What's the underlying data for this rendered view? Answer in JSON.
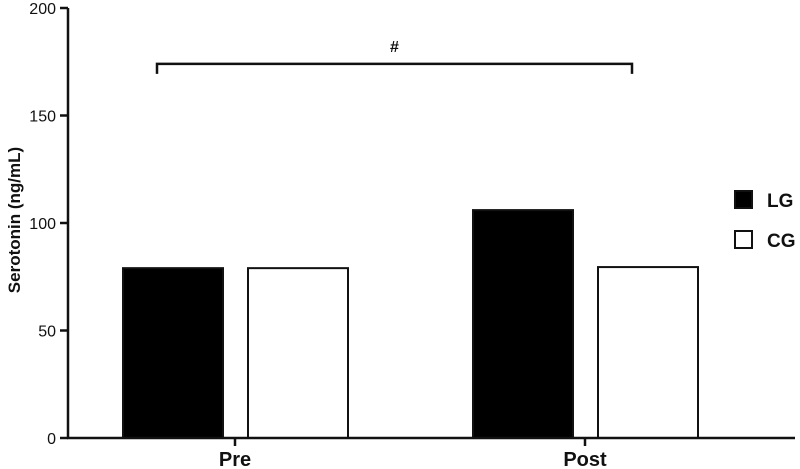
{
  "chart_data": {
    "type": "bar",
    "title": "",
    "xlabel": "",
    "ylabel": "Serotonin (ng/mL)",
    "categories": [
      "Pre",
      "Post"
    ],
    "series": [
      {
        "name": "LG",
        "values": [
          79,
          106
        ],
        "color": "#000000"
      },
      {
        "name": "CG",
        "values": [
          79,
          79.5
        ],
        "color": "#ffffff"
      }
    ],
    "ylim": [
      0,
      200
    ],
    "yticks": [
      0,
      50,
      100,
      150,
      200
    ],
    "grid": false,
    "legend": "right",
    "annotations": [
      {
        "text": "#",
        "type": "bracket",
        "from": "LG Pre",
        "to": "CG Post",
        "y": 174
      }
    ]
  }
}
